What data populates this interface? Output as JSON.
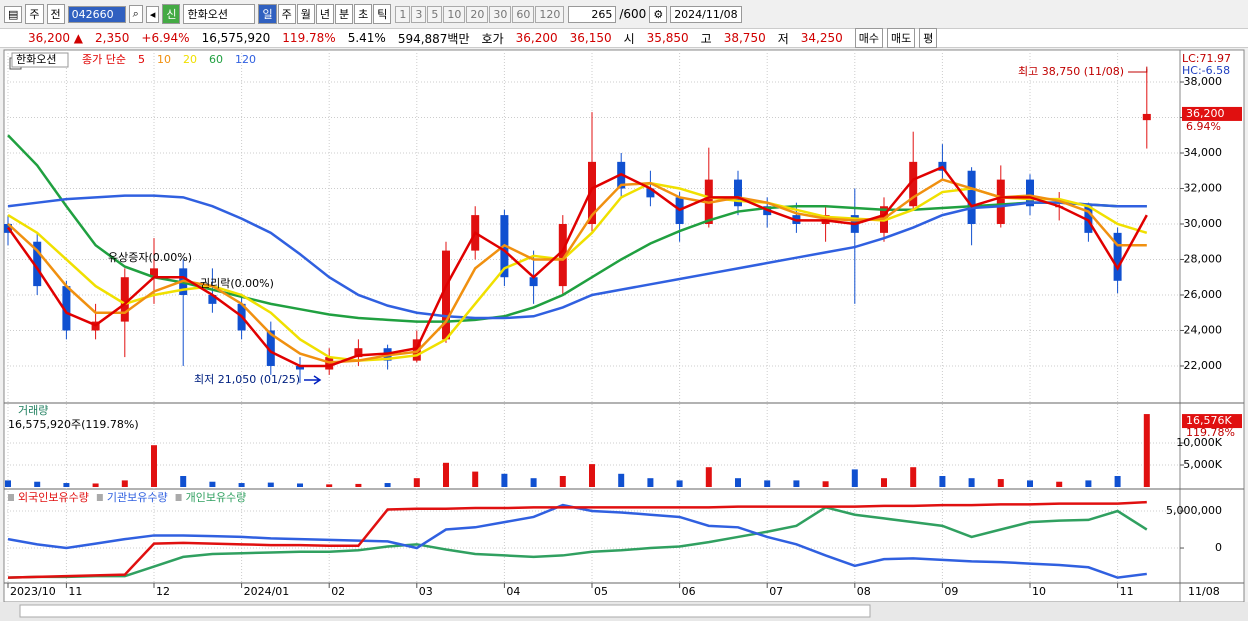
{
  "toolbar": {
    "period": "주",
    "range": "전",
    "code": "042660",
    "badge": "신",
    "name": "한화오션",
    "units": [
      "일",
      "주",
      "월",
      "년",
      "분",
      "초",
      "틱"
    ],
    "minutes": [
      "1",
      "3",
      "5",
      "10",
      "20",
      "30",
      "60",
      "120"
    ],
    "count": "265",
    "max": "/600",
    "date": "2024/11/08"
  },
  "quote": {
    "price": "36,200 ▲",
    "change": "2,350",
    "rate": "+6.94%",
    "volume": "16,575,920",
    "vol_ratio": "119.78%",
    "turnover": "5.41%",
    "amount": "594,887백만",
    "bid_label": "호가",
    "ask": "36,200",
    "bid": "36,150",
    "open_label": "시",
    "open": "35,850",
    "high_label": "고",
    "high": "38,750",
    "low_label": "저",
    "low": "34,250",
    "buy": "매수",
    "sell": "매도",
    "avg": "평"
  },
  "chart_data": [
    {
      "type": "candlestick",
      "stock_label": "한화오션",
      "legend_prefix": "종가 단순",
      "open": [
        30000,
        29000,
        26500,
        24000,
        24500,
        27000,
        27500,
        26000,
        25500,
        24000,
        22000,
        21800,
        22500,
        23000,
        22300,
        23500,
        28500,
        30500,
        27000,
        26500,
        30000,
        33500,
        32000,
        31500,
        30000,
        32500,
        31000,
        30500,
        30000,
        30500,
        29500,
        31000,
        33500,
        33000,
        30000,
        32500,
        31000,
        31000,
        29500,
        35850
      ],
      "high": [
        30500,
        29500,
        26800,
        25500,
        27500,
        29200,
        28000,
        27500,
        26000,
        24500,
        22500,
        23000,
        23500,
        23200,
        24000,
        29000,
        31000,
        30800,
        28500,
        30500,
        36300,
        34000,
        33000,
        31800,
        34300,
        33000,
        31500,
        31200,
        31000,
        32000,
        31500,
        35200,
        34500,
        33200,
        33300,
        32800,
        31800,
        31200,
        29800,
        38750
      ],
      "low": [
        28800,
        26000,
        23500,
        23500,
        22500,
        25500,
        22000,
        25000,
        23500,
        21500,
        21050,
        21500,
        22000,
        21800,
        22200,
        23300,
        28000,
        26500,
        25500,
        26000,
        29500,
        31500,
        31000,
        29000,
        29800,
        30500,
        29800,
        29500,
        29000,
        25500,
        29000,
        30800,
        32500,
        28800,
        29800,
        30500,
        30200,
        29000,
        26100,
        34250
      ],
      "close": [
        29500,
        26500,
        24000,
        24500,
        27000,
        27500,
        26000,
        25500,
        24000,
        22000,
        21800,
        22500,
        23000,
        22300,
        23500,
        28500,
        30500,
        27000,
        26500,
        30000,
        33500,
        32000,
        31500,
        30000,
        32500,
        31000,
        30500,
        30000,
        30500,
        29500,
        31000,
        33500,
        33000,
        30000,
        32500,
        31000,
        31000,
        29500,
        26800,
        36200
      ],
      "up_color": "#e01010",
      "down_color": "#1050d0",
      "series": [
        {
          "name": "5",
          "color": "#e00000",
          "values": [
            29800,
            27500,
            25000,
            24300,
            25500,
            27000,
            27000,
            26000,
            24800,
            22800,
            22000,
            22000,
            22600,
            22700,
            23000,
            26500,
            29500,
            28500,
            27000,
            28500,
            32000,
            32800,
            32000,
            30800,
            31500,
            31500,
            30800,
            30200,
            30200,
            30000,
            30500,
            32500,
            33200,
            31000,
            31500,
            31500,
            31000,
            30200,
            27500,
            30500
          ]
        },
        {
          "name": "10",
          "color": "#f09010",
          "values": [
            30000,
            28500,
            26500,
            25000,
            25000,
            26200,
            26800,
            26500,
            25500,
            23800,
            22700,
            22200,
            22300,
            22600,
            22800,
            24500,
            27500,
            28800,
            28000,
            28000,
            30500,
            32200,
            32300,
            31500,
            31200,
            31500,
            31200,
            30600,
            30300,
            30200,
            30300,
            31500,
            32500,
            32000,
            31500,
            31600,
            31300,
            30700,
            28800,
            28800
          ]
        },
        {
          "name": "20",
          "color": "#f0e000",
          "values": [
            30500,
            29500,
            28000,
            26500,
            25500,
            26000,
            26300,
            26500,
            26000,
            25000,
            23500,
            22500,
            22300,
            22400,
            22600,
            23500,
            25500,
            27500,
            28200,
            28000,
            29500,
            31500,
            32300,
            32000,
            31500,
            31300,
            31200,
            30800,
            30400,
            30300,
            30200,
            30800,
            31800,
            32000,
            31500,
            31400,
            31400,
            31000,
            30000,
            29500
          ]
        },
        {
          "name": "60",
          "color": "#20a040",
          "values": [
            35000,
            33300,
            31000,
            28800,
            27600,
            27000,
            26700,
            26300,
            25900,
            25500,
            25200,
            24900,
            24700,
            24600,
            24500,
            24500,
            24600,
            24800,
            25300,
            26000,
            27000,
            28000,
            28900,
            29600,
            30200,
            30700,
            30900,
            31000,
            31000,
            30900,
            30800,
            30800,
            30900,
            31000,
            31100,
            31200,
            31200,
            31100,
            31000,
            31000
          ]
        },
        {
          "name": "120",
          "color": "#3060e0",
          "values": [
            31000,
            31200,
            31400,
            31500,
            31600,
            31600,
            31500,
            31000,
            30300,
            29500,
            28300,
            27000,
            26000,
            25400,
            25000,
            24800,
            24700,
            24700,
            24800,
            25300,
            26000,
            26300,
            26600,
            26900,
            27200,
            27500,
            27800,
            28100,
            28400,
            28700,
            29200,
            29800,
            30500,
            30900,
            31000,
            31200,
            31200,
            31100,
            31000,
            31000
          ]
        }
      ],
      "ylim": [
        19970,
        39690
      ],
      "yticks": [
        {
          "value": 22000,
          "label": "22,000"
        },
        {
          "value": 24000,
          "label": "24,000"
        },
        {
          "value": 26000,
          "label": "26,000"
        },
        {
          "value": 28000,
          "label": "28,000"
        },
        {
          "value": 30000,
          "label": "30,000"
        },
        {
          "value": 32000,
          "label": "32,000"
        },
        {
          "value": 34000,
          "label": "34,000"
        },
        {
          "value": 36000,
          "label": "36,000"
        },
        {
          "value": 38000,
          "label": "38,000"
        }
      ],
      "high_label": "최고 38,750 (11/08)",
      "low_label": "최저 21,050 (01/25)",
      "events": [
        "유상증자(0.00%)",
        "권리락(0.00%)"
      ],
      "lc": "LC:71.97",
      "hc": "HC:-6.58",
      "last_label": "36,200",
      "last_change": "6.94%"
    },
    {
      "type": "bar",
      "title": "거래량",
      "subtitle": "16,575,920주(119.78%)",
      "values": [
        1500,
        1200,
        900,
        800,
        1500,
        9500,
        2500,
        1200,
        900,
        1000,
        800,
        600,
        700,
        900,
        2000,
        5500,
        3500,
        3000,
        2000,
        2500,
        5200,
        3000,
        2000,
        1500,
        4500,
        2000,
        1500,
        1500,
        1300,
        4000,
        2000,
        4500,
        2500,
        2000,
        1800,
        1500,
        1200,
        1500,
        2500,
        16576
      ],
      "ylim": [
        0,
        18636
      ],
      "yticks": [
        {
          "value": 5000,
          "label": "5,000K"
        },
        {
          "value": 10000,
          "label": "10,000K"
        }
      ],
      "last_label": "16,576K",
      "last_change": "119.78%"
    },
    {
      "type": "line",
      "categories": [
        "2023/10",
        null,
        "11",
        null,
        null,
        "12",
        null,
        null,
        "2024/01",
        null,
        null,
        "02",
        null,
        null,
        "03",
        null,
        null,
        "04",
        null,
        null,
        "05",
        null,
        null,
        "06",
        null,
        null,
        "07",
        null,
        null,
        "08",
        null,
        null,
        "09",
        null,
        null,
        "10",
        null,
        null,
        "11",
        null
      ],
      "last_date": "11/08",
      "series": [
        {
          "name": "외국인보유수량",
          "color": "#e01010",
          "values": [
            -4000000,
            -3900000,
            -3800000,
            -3700000,
            -3600000,
            600000,
            700000,
            600000,
            500000,
            400000,
            400000,
            300000,
            300000,
            5200000,
            5300000,
            5300000,
            5400000,
            5400000,
            5500000,
            5500000,
            5500000,
            5500000,
            5500000,
            5500000,
            5500000,
            5600000,
            5600000,
            5600000,
            5600000,
            5600000,
            5700000,
            5700000,
            5800000,
            5800000,
            5900000,
            5900000,
            6000000,
            6000000,
            6000000,
            6200000
          ]
        },
        {
          "name": "기관보유수량",
          "color": "#3060e0",
          "values": [
            1200000,
            500000,
            0,
            600000,
            1200000,
            1700000,
            1700000,
            1600000,
            1500000,
            1300000,
            1200000,
            1100000,
            1000000,
            900000,
            0,
            2500000,
            2800000,
            3500000,
            4200000,
            5800000,
            5000000,
            4800000,
            4500000,
            4200000,
            3000000,
            2800000,
            1500000,
            500000,
            -1000000,
            -2400000,
            -1500000,
            -1400000,
            -1600000,
            -1800000,
            -1900000,
            -2100000,
            -2300000,
            -2600000,
            -4000000,
            -3500000
          ]
        },
        {
          "name": "개인보유수량",
          "color": "#30a060",
          "values": [
            -4000000,
            -3900000,
            -3900000,
            -3800000,
            -3800000,
            -2500000,
            -1200000,
            -800000,
            -700000,
            -600000,
            -500000,
            -500000,
            -300000,
            200000,
            500000,
            -200000,
            -800000,
            -1000000,
            -1200000,
            -1000000,
            -500000,
            -300000,
            0,
            200000,
            800000,
            1500000,
            2200000,
            3000000,
            5500000,
            4500000,
            4000000,
            3500000,
            3000000,
            1500000,
            2500000,
            3500000,
            3700000,
            3800000,
            5000000,
            2500000
          ]
        }
      ],
      "ylim": [
        -4590000,
        7840000
      ],
      "yticks": [
        0,
        {
          "value": 5000000,
          "label": "5,000,000"
        }
      ]
    }
  ]
}
